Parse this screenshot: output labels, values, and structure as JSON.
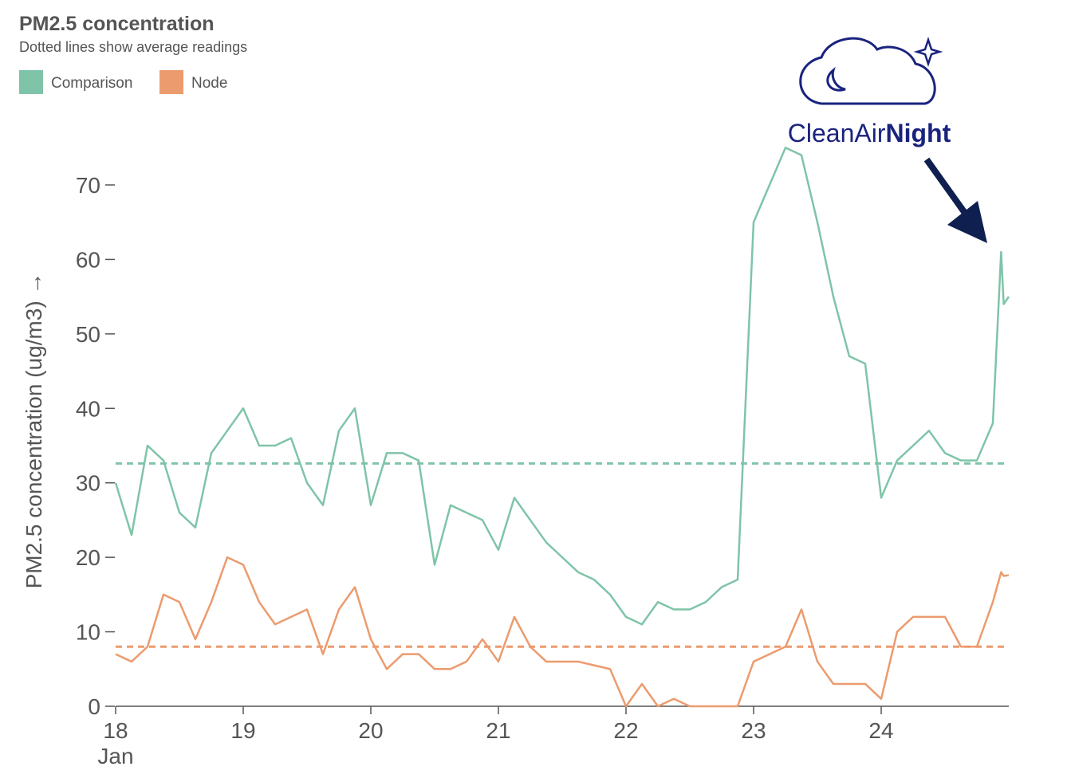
{
  "chart_data": {
    "type": "line",
    "title": "PM2.5 concentration",
    "subtitle": "Dotted lines show average readings",
    "y_label": "PM2.5 concentration (ug/m3) →",
    "x_sublabel": "Jan",
    "annotation": {
      "text": "CleanAir",
      "bold_text": "Night"
    },
    "x": [
      18,
      18.125,
      18.25,
      18.375,
      18.5,
      18.625,
      18.75,
      18.875,
      19,
      19.125,
      19.25,
      19.375,
      19.5,
      19.625,
      19.75,
      19.875,
      20,
      20.125,
      20.25,
      20.375,
      20.5,
      20.625,
      20.75,
      20.875,
      21,
      21.125,
      21.25,
      21.375,
      21.5,
      21.625,
      21.75,
      21.875,
      22,
      22.125,
      22.25,
      22.375,
      22.5,
      22.625,
      22.75,
      22.875,
      23,
      23.125,
      23.25,
      23.375,
      23.5,
      23.625,
      23.75,
      23.875,
      24,
      24.125,
      24.25,
      24.375,
      24.5,
      24.625,
      24.75,
      24.875,
      24.94,
      24.96,
      25
    ],
    "series": [
      {
        "name": "Comparison",
        "color": "#7fc4a8",
        "average": 32.6,
        "values": [
          30,
          23,
          35,
          33,
          26,
          24,
          34,
          37,
          40,
          35,
          35,
          36,
          30,
          27,
          37,
          40,
          27,
          34,
          34,
          33,
          19,
          27,
          26,
          25,
          21,
          28,
          25,
          22,
          20,
          18,
          17,
          15,
          12,
          11,
          14,
          13,
          13,
          14,
          16,
          17,
          65,
          70,
          75,
          74,
          65,
          55,
          47,
          46,
          28,
          33,
          35,
          37,
          34,
          33,
          33,
          38,
          61,
          54,
          55
        ]
      },
      {
        "name": "Node",
        "color": "#ec9b6e",
        "average": 8,
        "values": [
          7,
          6,
          8,
          15,
          14,
          9,
          14,
          20,
          19,
          14,
          11,
          12,
          13,
          7,
          13,
          16,
          9,
          5,
          7,
          7,
          5,
          5,
          6,
          9,
          6,
          12,
          8,
          6,
          6,
          6,
          5.5,
          5,
          0,
          3,
          0,
          1,
          0,
          0,
          0,
          0,
          6,
          7,
          8,
          13,
          6,
          3,
          3,
          3,
          1,
          10,
          12,
          12,
          12,
          8,
          8,
          14,
          18,
          17.5,
          17.6
        ]
      }
    ],
    "xlim": [
      18,
      25
    ],
    "xticks": [
      18,
      19,
      20,
      21,
      22,
      23,
      24
    ],
    "ylim": [
      0,
      70
    ],
    "yticks": [
      0,
      10,
      20,
      30,
      40,
      50,
      60,
      70
    ]
  }
}
